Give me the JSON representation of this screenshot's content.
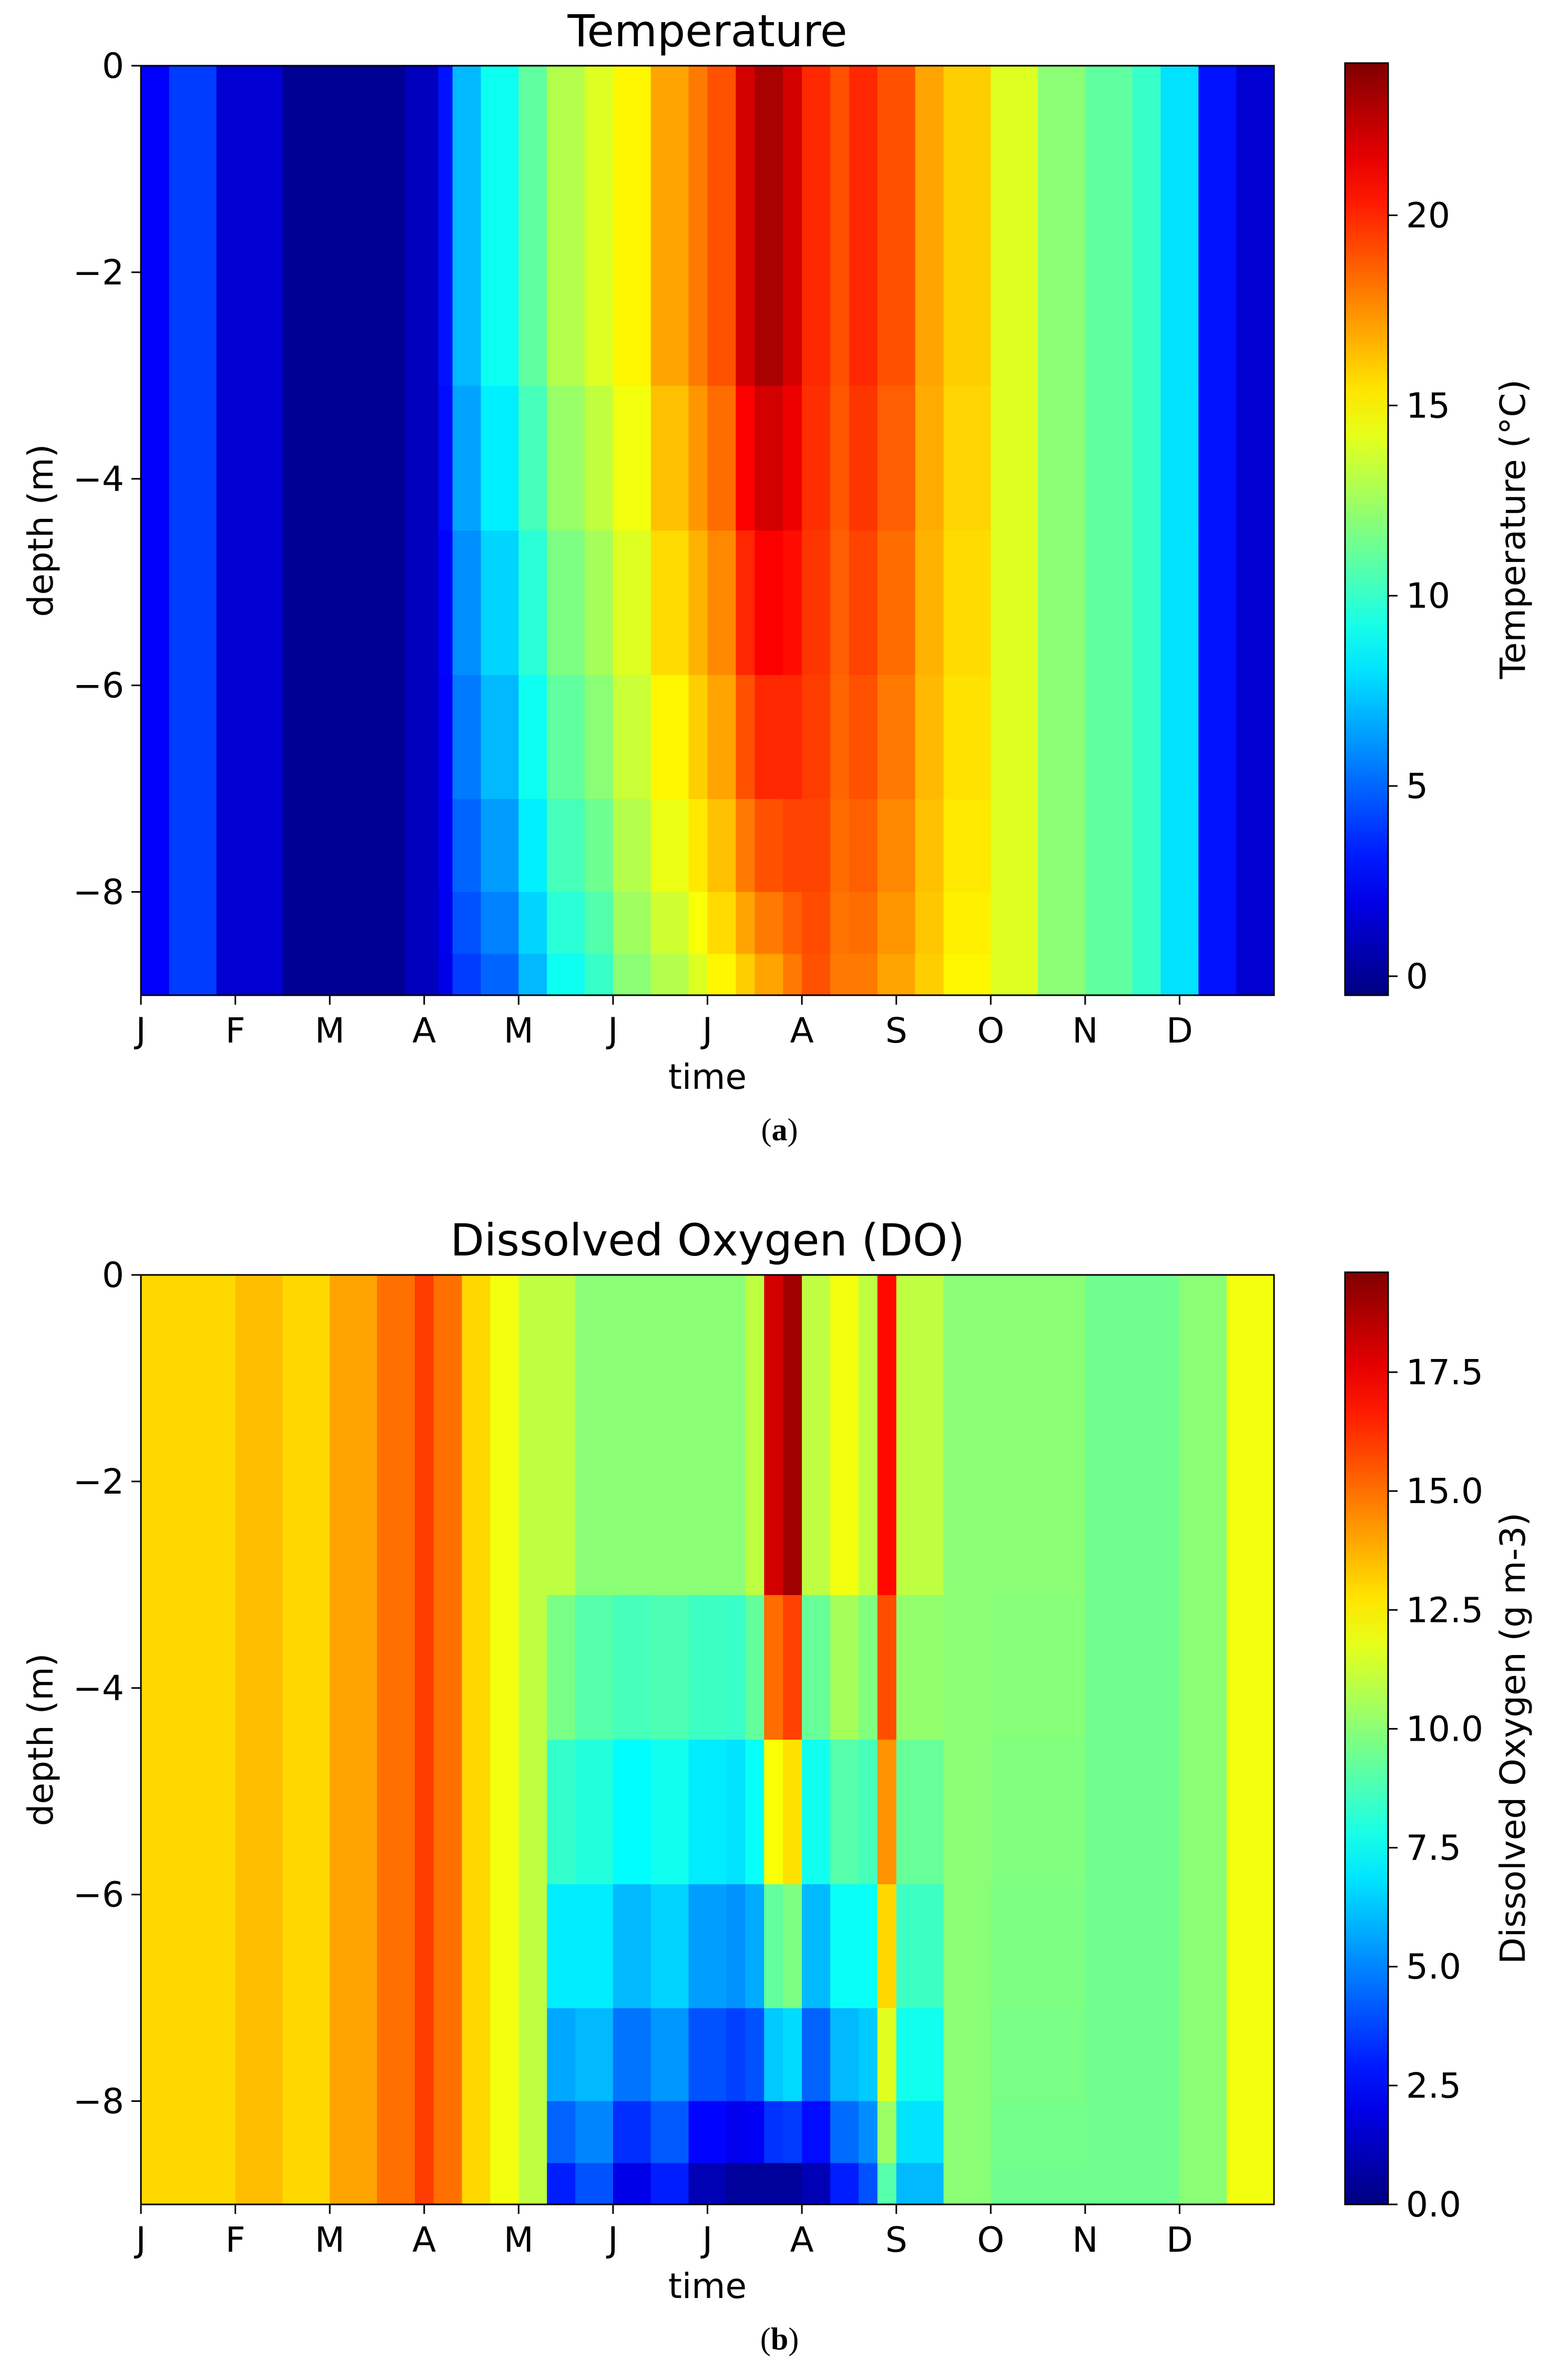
{
  "figure": [
    {
      "caption_letter": "a",
      "chart_data": {
        "type": "heatmap",
        "title": "Temperature",
        "xlabel": "time",
        "ylabel": "depth (m)",
        "colorbar_label": "Temperature (°C)",
        "colormap": "jet",
        "x_tick_labels": [
          "J",
          "F",
          "M",
          "A",
          "M",
          "J",
          "J",
          "A",
          "S",
          "O",
          "N",
          "D"
        ],
        "y_ticks": [
          0,
          -2,
          -4,
          -6,
          -8
        ],
        "y_tick_labels": [
          "0",
          "−2",
          "−4",
          "−6",
          "−8"
        ],
        "ylim": [
          -9,
          0
        ],
        "x_range_months": [
          0,
          12
        ],
        "color_range": [
          -0.5,
          24
        ],
        "colorbar_ticks": [
          0,
          5,
          10,
          15,
          20
        ],
        "colorbar_tick_labels": [
          "0",
          "5",
          "10",
          "15",
          "20"
        ],
        "depth_levels": [
          0,
          -3.1,
          -4.5,
          -5.9,
          -7.1,
          -8.0,
          -8.6,
          -9
        ],
        "time_months": [
          0,
          0.3,
          0.8,
          1.5,
          2.5,
          2.8,
          3.15,
          3.3,
          3.6,
          4.0,
          4.3,
          4.7,
          5.0,
          5.4,
          5.8,
          6.0,
          6.3,
          6.5,
          6.8,
          7.0,
          7.3,
          7.5,
          7.8,
          8.2,
          8.5,
          9.0,
          9.5,
          10.0,
          10.5,
          10.8,
          11.2,
          11.6,
          12
        ],
        "values_surface": [
          2.5,
          4,
          1.5,
          0,
          0,
          1,
          3,
          7,
          9,
          11,
          13,
          14,
          15,
          17,
          18,
          19,
          22,
          23,
          22,
          20,
          19,
          20,
          19,
          17,
          16,
          14,
          12,
          11,
          10,
          8,
          3,
          1.5,
          1
        ],
        "values_bottom": [
          2.5,
          4,
          1.5,
          0,
          0,
          1,
          2,
          4,
          5,
          7,
          9,
          10,
          12,
          13,
          14,
          15,
          16,
          17,
          18,
          19,
          18,
          18,
          17,
          16,
          15,
          14,
          12,
          11,
          10,
          8,
          3,
          1.5,
          1
        ]
      }
    },
    {
      "caption_letter": "b",
      "chart_data": {
        "type": "heatmap",
        "title": "Dissolved Oxygen (DO)",
        "xlabel": "time",
        "ylabel": "depth (m)",
        "colorbar_label": "Dissolved Oxygen (g m-3)",
        "colormap": "jet",
        "x_tick_labels": [
          "J",
          "F",
          "M",
          "A",
          "M",
          "J",
          "J",
          "A",
          "S",
          "O",
          "N",
          "D"
        ],
        "y_ticks": [
          0,
          -2,
          -4,
          -6,
          -8
        ],
        "y_tick_labels": [
          "0",
          "−2",
          "−4",
          "−6",
          "−8"
        ],
        "ylim": [
          -9,
          0
        ],
        "x_range_months": [
          0,
          12
        ],
        "color_range": [
          0,
          19.6
        ],
        "colorbar_ticks": [
          0,
          2.5,
          5,
          7.5,
          10,
          12.5,
          15,
          17.5
        ],
        "colorbar_tick_labels": [
          "0.0",
          "2.5",
          "5.0",
          "7.5",
          "10.0",
          "12.5",
          "15.0",
          "17.5"
        ],
        "depth_levels": [
          0,
          -3.1,
          -4.5,
          -5.9,
          -7.1,
          -8.0,
          -8.6,
          -9
        ],
        "time_months": [
          0,
          0.5,
          1.0,
          1.5,
          2.0,
          2.5,
          2.9,
          3.1,
          3.4,
          3.7,
          4.0,
          4.3,
          4.6,
          5.0,
          5.4,
          5.8,
          6.2,
          6.4,
          6.6,
          6.8,
          7.0,
          7.3,
          7.6,
          7.8,
          8.0,
          8.5,
          9.0,
          10.0,
          11.0,
          11.5,
          12
        ],
        "values_surface": [
          13,
          13,
          13.5,
          13,
          14,
          15,
          16,
          15,
          13,
          12,
          11,
          11,
          10,
          10,
          10,
          10,
          10,
          11,
          18,
          19,
          11,
          12,
          11,
          17,
          11,
          10,
          10,
          9.5,
          10,
          12,
          12.5
        ],
        "values_bottom": [
          13,
          13,
          13.5,
          13,
          14,
          15,
          16,
          15,
          13,
          12,
          11,
          3,
          4,
          2,
          3,
          1,
          0.5,
          0.5,
          0.5,
          0.5,
          1,
          3,
          4,
          9,
          6,
          10,
          9.5,
          9.5,
          10,
          12,
          12.5
        ]
      }
    }
  ]
}
